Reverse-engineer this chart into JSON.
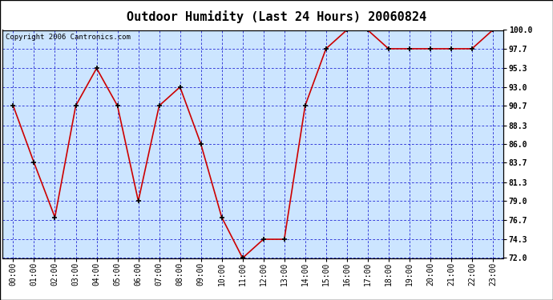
{
  "title": "Outdoor Humidity (Last 24 Hours) 20060824",
  "copyright": "Copyright 2006 Cantronics.com",
  "x_labels": [
    "00:00",
    "01:00",
    "02:00",
    "03:00",
    "04:00",
    "05:00",
    "06:00",
    "07:00",
    "08:00",
    "09:00",
    "10:00",
    "11:00",
    "12:00",
    "13:00",
    "14:00",
    "15:00",
    "16:00",
    "17:00",
    "18:00",
    "19:00",
    "20:00",
    "21:00",
    "22:00",
    "23:00"
  ],
  "x_values": [
    0,
    1,
    2,
    3,
    4,
    5,
    6,
    7,
    8,
    9,
    10,
    11,
    12,
    13,
    14,
    15,
    16,
    17,
    18,
    19,
    20,
    21,
    22,
    23
  ],
  "y_values": [
    90.7,
    83.7,
    77.0,
    90.7,
    95.3,
    90.7,
    79.0,
    90.7,
    93.0,
    86.0,
    77.0,
    72.0,
    74.3,
    74.3,
    90.7,
    97.7,
    100.0,
    100.0,
    97.7,
    97.7,
    97.7,
    97.7,
    97.7,
    100.0
  ],
  "yticks": [
    72.0,
    74.3,
    76.7,
    79.0,
    81.3,
    83.7,
    86.0,
    88.3,
    90.7,
    93.0,
    95.3,
    97.7,
    100.0
  ],
  "ylim": [
    72.0,
    100.0
  ],
  "line_color": "#cc0000",
  "marker_color": "#000000",
  "bg_color": "#cce5ff",
  "grid_color": "#0000cc",
  "border_color": "#000000",
  "title_fontsize": 11,
  "copyright_fontsize": 6.5,
  "tick_fontsize": 7,
  "ytick_fontsize": 7
}
